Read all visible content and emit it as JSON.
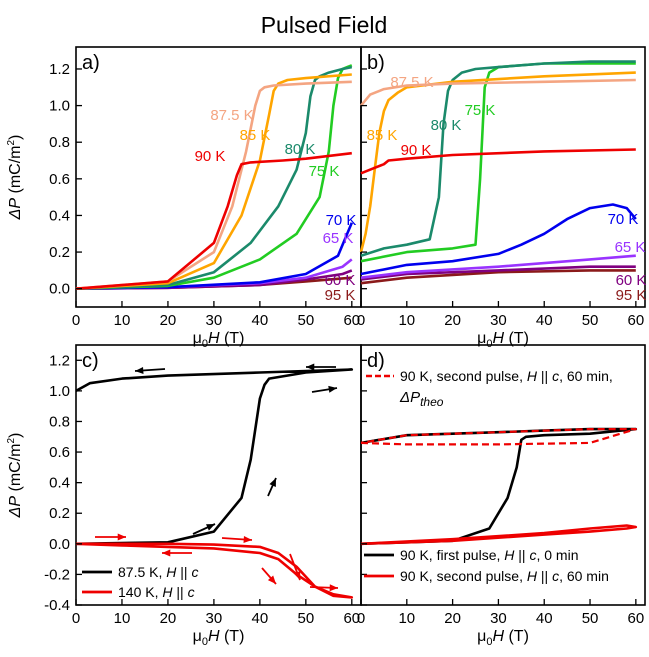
{
  "figure_title": "Pulsed Field",
  "panels_common": {
    "xlabel_mu": "μ",
    "xlabel_sub": "0",
    "xlabel_H": "H",
    "xlabel_unit": " (T)",
    "ylabel_delta": "ΔP",
    "ylabel_unit": " (mC/m",
    "ylabel_sup": "2",
    "ylabel_close": ")"
  },
  "chart_data": [
    {
      "id": "a",
      "panel_label": "a)",
      "type": "line",
      "xlim": [
        0,
        62
      ],
      "ylim": [
        -0.1,
        1.32
      ],
      "xticks": [
        0,
        10,
        20,
        30,
        40,
        50,
        60
      ],
      "yticks": [
        0.0,
        0.2,
        0.4,
        0.6,
        0.8,
        1.0,
        1.2
      ],
      "series": [
        {
          "name": "95 K",
          "color": "#8b1a1a",
          "x": [
            0,
            20,
            40,
            50,
            60
          ],
          "y": [
            0,
            0.005,
            0.02,
            0.04,
            0.06
          ]
        },
        {
          "name": "60 K",
          "color": "#800080",
          "x": [
            0,
            20,
            40,
            50,
            58,
            60
          ],
          "y": [
            0,
            0.005,
            0.02,
            0.05,
            0.08,
            0.1
          ]
        },
        {
          "name": "65 K",
          "color": "#9933ff",
          "x": [
            0,
            20,
            40,
            50,
            58,
            60
          ],
          "y": [
            0,
            0.008,
            0.03,
            0.06,
            0.12,
            0.16
          ]
        },
        {
          "name": "70 K",
          "color": "#0000ee",
          "x": [
            0,
            20,
            40,
            50,
            57,
            60
          ],
          "y": [
            0,
            0.008,
            0.035,
            0.08,
            0.18,
            0.36
          ]
        },
        {
          "name": "75 K",
          "color": "#22cc22",
          "x": [
            0,
            20,
            30,
            40,
            48,
            53,
            55,
            56,
            57,
            58,
            59,
            60
          ],
          "y": [
            0,
            0.015,
            0.06,
            0.16,
            0.3,
            0.5,
            0.75,
            1.0,
            1.15,
            1.2,
            1.21,
            1.22
          ]
        },
        {
          "name": "80 K",
          "color": "#1b8a6b",
          "x": [
            0,
            20,
            30,
            38,
            44,
            48,
            50,
            51,
            52,
            53,
            55,
            58,
            60
          ],
          "y": [
            0,
            0.02,
            0.09,
            0.25,
            0.45,
            0.65,
            0.85,
            1.05,
            1.14,
            1.16,
            1.18,
            1.2,
            1.21
          ]
        },
        {
          "name": "85 K",
          "color": "#ffa500",
          "x": [
            0,
            20,
            30,
            36,
            40,
            42,
            43,
            44,
            46,
            50,
            60
          ],
          "y": [
            0,
            0.03,
            0.14,
            0.4,
            0.7,
            0.95,
            1.08,
            1.12,
            1.14,
            1.15,
            1.17
          ]
        },
        {
          "name": "87.5 K",
          "color": "#f4a582",
          "x": [
            0,
            20,
            30,
            34,
            37,
            39,
            40,
            41,
            43,
            50,
            60
          ],
          "y": [
            0,
            0.04,
            0.2,
            0.45,
            0.75,
            1.0,
            1.08,
            1.1,
            1.11,
            1.12,
            1.13
          ]
        },
        {
          "name": "90 K",
          "color": "#ee0000",
          "x": [
            0,
            20,
            30,
            33,
            35,
            36,
            38,
            45,
            50,
            60
          ],
          "y": [
            0,
            0.04,
            0.25,
            0.45,
            0.62,
            0.68,
            0.69,
            0.7,
            0.71,
            0.74
          ]
        }
      ],
      "labels": [
        "87.5 K",
        "85 K",
        "90 K",
        "80 K",
        "75 K",
        "70 K",
        "65 K",
        "60 K",
        "95 K"
      ]
    },
    {
      "id": "b",
      "panel_label": "b)",
      "type": "line",
      "xlim": [
        0,
        62
      ],
      "ylim": [
        -0.1,
        1.32
      ],
      "xticks": [
        0,
        10,
        20,
        30,
        40,
        50,
        60
      ],
      "series": [
        {
          "name": "95 K",
          "color": "#8b1a1a",
          "x": [
            0,
            10,
            30,
            50,
            60
          ],
          "y": [
            0.03,
            0.06,
            0.09,
            0.1,
            0.1
          ]
        },
        {
          "name": "60 K",
          "color": "#800080",
          "x": [
            0,
            10,
            30,
            50,
            60
          ],
          "y": [
            0.05,
            0.08,
            0.1,
            0.12,
            0.12
          ]
        },
        {
          "name": "65 K",
          "color": "#9933ff",
          "x": [
            0,
            10,
            30,
            50,
            60
          ],
          "y": [
            0.06,
            0.09,
            0.12,
            0.16,
            0.18
          ]
        },
        {
          "name": "70 K",
          "color": "#0000ee",
          "x": [
            0,
            10,
            20,
            30,
            35,
            40,
            45,
            50,
            55,
            58,
            60
          ],
          "y": [
            0.08,
            0.13,
            0.15,
            0.19,
            0.24,
            0.3,
            0.38,
            0.44,
            0.46,
            0.44,
            0.38
          ]
        },
        {
          "name": "75 K",
          "color": "#22cc22",
          "x": [
            0,
            10,
            20,
            25,
            26,
            27,
            28,
            30,
            40,
            50,
            60
          ],
          "y": [
            0.15,
            0.2,
            0.22,
            0.24,
            0.6,
            1.1,
            1.18,
            1.21,
            1.23,
            1.23,
            1.23
          ]
        },
        {
          "name": "80 K",
          "color": "#1b8a6b",
          "x": [
            0,
            5,
            10,
            15,
            17,
            18,
            19,
            20,
            22,
            25,
            30,
            40,
            50,
            60
          ],
          "y": [
            0.18,
            0.22,
            0.24,
            0.27,
            0.5,
            0.9,
            1.08,
            1.14,
            1.18,
            1.2,
            1.21,
            1.23,
            1.24,
            1.24
          ]
        },
        {
          "name": "85 K",
          "color": "#ffa500",
          "x": [
            0,
            1,
            2,
            3,
            4,
            5,
            6,
            8,
            10,
            20,
            40,
            60
          ],
          "y": [
            0.2,
            0.3,
            0.45,
            0.65,
            0.85,
            0.97,
            1.03,
            1.07,
            1.1,
            1.13,
            1.16,
            1.18
          ]
        },
        {
          "name": "87.5 K",
          "color": "#f4a582",
          "x": [
            0,
            2,
            5,
            10,
            20,
            40,
            60
          ],
          "y": [
            1.0,
            1.06,
            1.09,
            1.11,
            1.12,
            1.13,
            1.14
          ]
        },
        {
          "name": "90 K",
          "color": "#ee0000",
          "x": [
            0,
            3,
            5,
            6,
            10,
            20,
            40,
            60
          ],
          "y": [
            0.63,
            0.66,
            0.68,
            0.7,
            0.71,
            0.73,
            0.75,
            0.76
          ]
        }
      ],
      "labels": [
        "87.5 K",
        "85 K",
        "80 K",
        "75 K",
        "90 K",
        "70 K",
        "65 K",
        "60 K",
        "95 K"
      ]
    },
    {
      "id": "c",
      "panel_label": "c)",
      "type": "line",
      "xlim": [
        0,
        62
      ],
      "ylim": [
        -0.4,
        1.3
      ],
      "xticks": [
        0,
        10,
        20,
        30,
        40,
        50,
        60
      ],
      "yticks": [
        -0.4,
        -0.2,
        0.0,
        0.2,
        0.4,
        0.6,
        0.8,
        1.0,
        1.2
      ],
      "series": [
        {
          "name": "87.5 K, H || c",
          "color": "#000000",
          "x": [
            0,
            20,
            30,
            36,
            38,
            40,
            41,
            42,
            50,
            60,
            50,
            40,
            20,
            10,
            3,
            0
          ],
          "y": [
            0,
            0.01,
            0.08,
            0.3,
            0.55,
            0.95,
            1.04,
            1.08,
            1.12,
            1.14,
            1.13,
            1.12,
            1.1,
            1.08,
            1.05,
            1.0
          ]
        },
        {
          "name": "140 K, H || c",
          "color": "#ee0000",
          "x": [
            0,
            20,
            30,
            40,
            44,
            48,
            52,
            56,
            60,
            56,
            52,
            48,
            44,
            40,
            30,
            20,
            10,
            0
          ],
          "y": [
            0,
            0.0,
            -0.005,
            -0.02,
            -0.06,
            -0.15,
            -0.28,
            -0.34,
            -0.35,
            -0.33,
            -0.28,
            -0.2,
            -0.1,
            -0.06,
            -0.03,
            -0.02,
            -0.01,
            0
          ]
        }
      ],
      "legend": [
        {
          "prefix": "87.5 K, ",
          "var": "H",
          "mid": " || ",
          "var2": "c",
          "color": "#000000"
        },
        {
          "prefix": "140 K, ",
          "var": "H",
          "mid": " || ",
          "var2": "c",
          "color": "#ee0000"
        }
      ]
    },
    {
      "id": "d",
      "panel_label": "d)",
      "type": "line",
      "xlim": [
        0,
        62
      ],
      "ylim": [
        -0.4,
        1.3
      ],
      "xticks": [
        0,
        10,
        20,
        30,
        40,
        50,
        60
      ],
      "series": [
        {
          "name": "90 K, first pulse, H || c, 0 min",
          "color": "#000000",
          "x": [
            0,
            20,
            28,
            32,
            34,
            35,
            36,
            40,
            50,
            60,
            50,
            40,
            30,
            20,
            10,
            0
          ],
          "y": [
            0,
            0.02,
            0.1,
            0.3,
            0.5,
            0.68,
            0.7,
            0.71,
            0.72,
            0.75,
            0.75,
            0.74,
            0.73,
            0.72,
            0.71,
            0.66
          ]
        },
        {
          "name": "90 K, second pulse, H || c, 60 min",
          "color": "#ee0000",
          "x": [
            0,
            20,
            40,
            50,
            58,
            60,
            58,
            50,
            40,
            20,
            0
          ],
          "y": [
            0,
            0.02,
            0.06,
            0.08,
            0.1,
            0.11,
            0.12,
            0.1,
            0.07,
            0.03,
            0
          ]
        },
        {
          "name": "ΔP_theo",
          "color": "#ee0000",
          "dashed": true,
          "x": [
            0,
            10,
            30,
            50,
            60,
            50,
            30,
            10,
            0
          ],
          "y": [
            0.66,
            0.65,
            0.65,
            0.66,
            0.75,
            0.75,
            0.73,
            0.71,
            0.66
          ]
        }
      ],
      "legend_top": {
        "text": "90 K, second pulse, H || c, 60 min,",
        "sub": "ΔP",
        "subscript": "theo",
        "color": "#ee0000"
      },
      "legend_bottom": [
        {
          "prefix": "90 K, first pulse, ",
          "var": "H",
          "mid": " || ",
          "var2": "c",
          "suffix": ", 0 min",
          "color": "#000000"
        },
        {
          "prefix": "90 K, second pulse, ",
          "var": "H",
          "mid": " || ",
          "var2": "c",
          "suffix": ", 60 min",
          "color": "#ee0000"
        }
      ]
    }
  ]
}
